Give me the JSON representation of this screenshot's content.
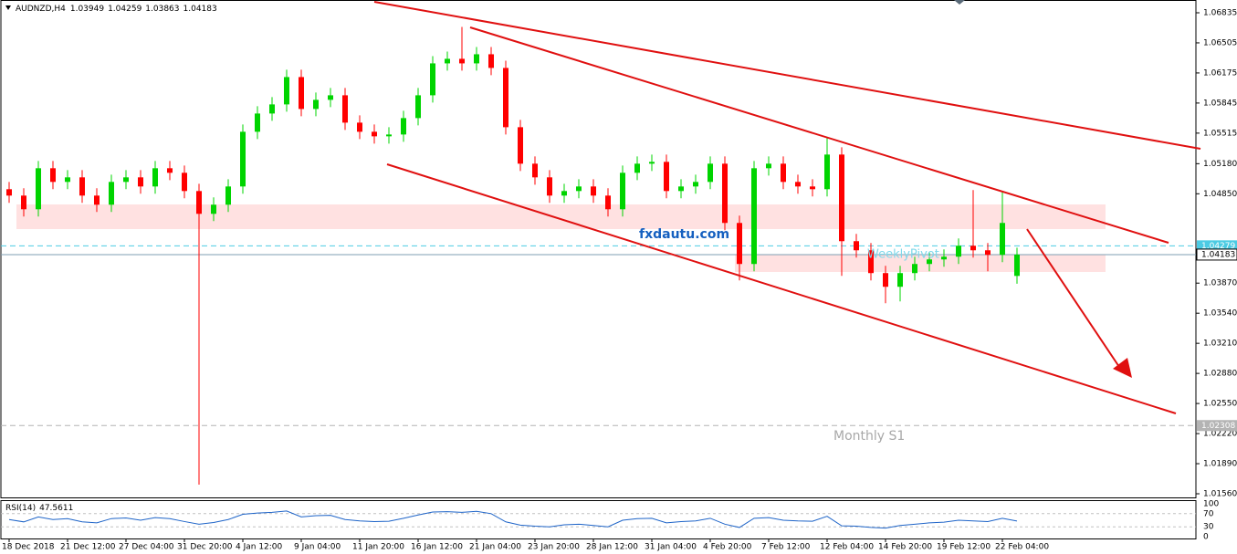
{
  "chart_data": {
    "type": "candlestick",
    "symbol": "AUDNZD,H4",
    "categories": [
      "18 Dec 2018",
      null,
      null,
      null,
      "21 Dec 12:00",
      null,
      null,
      null,
      "27 Dec 04:00",
      null,
      null,
      null,
      "31 Dec 20:00",
      null,
      null,
      null,
      "4 Jan 12:00",
      null,
      null,
      null,
      "9 Jan 04:00",
      null,
      null,
      null,
      "11 Jan 20:00",
      null,
      null,
      null,
      "16 Jan 12:00",
      null,
      null,
      null,
      "21 Jan 04:00",
      null,
      null,
      null,
      "23 Jan 20:00",
      null,
      null,
      null,
      "28 Jan 12:00",
      null,
      null,
      null,
      "31 Jan 04:00",
      null,
      null,
      null,
      "4 Feb 20:00",
      null,
      null,
      null,
      "7 Feb 12:00",
      null,
      null,
      null,
      "12 Feb 04:00",
      null,
      null,
      null,
      "14 Feb 20:00",
      null,
      null,
      null,
      "19 Feb 12:00",
      null,
      null,
      null,
      "22 Feb 04:00",
      null
    ],
    "open": [
      1.049,
      1.0483,
      1.0468,
      1.0513,
      1.0498,
      1.0503,
      1.0483,
      1.0473,
      1.0498,
      1.0503,
      1.0493,
      1.0513,
      1.0508,
      1.0488,
      1.0463,
      1.0473,
      1.0493,
      1.0553,
      1.0573,
      1.0583,
      1.0613,
      1.0578,
      1.0588,
      1.0593,
      1.0563,
      1.0553,
      1.0548,
      1.055,
      1.0568,
      1.0593,
      1.0628,
      1.0633,
      1.0628,
      1.0638,
      1.0623,
      1.0558,
      1.0518,
      1.0503,
      1.0483,
      1.0488,
      1.0493,
      1.0483,
      1.0468,
      1.0508,
      1.0518,
      1.052,
      1.0488,
      1.0493,
      1.0498,
      1.0518,
      1.0453,
      1.0408,
      1.0513,
      1.0518,
      1.0498,
      1.0493,
      1.049,
      1.0528,
      1.0433,
      1.0423,
      1.0398,
      1.0383,
      1.0398,
      1.0408,
      1.0413,
      1.0416,
      1.0428,
      1.0423,
      1.0418,
      1.03949
    ],
    "high": [
      1.0498,
      1.0491,
      1.0521,
      1.0521,
      1.0511,
      1.0511,
      1.0491,
      1.0506,
      1.0511,
      1.0511,
      1.0521,
      1.0521,
      1.0516,
      1.0496,
      1.0481,
      1.0501,
      1.0561,
      1.0581,
      1.0591,
      1.0621,
      1.0621,
      1.0596,
      1.0601,
      1.0601,
      1.0571,
      1.0561,
      1.0558,
      1.0576,
      1.0601,
      1.0636,
      1.0641,
      1.0668,
      1.0646,
      1.0646,
      1.0631,
      1.0566,
      1.0526,
      1.0511,
      1.0496,
      1.0501,
      1.0501,
      1.0491,
      1.0516,
      1.0526,
      1.0528,
      1.0528,
      1.0501,
      1.0506,
      1.0526,
      1.0526,
      1.0461,
      1.0521,
      1.0526,
      1.0526,
      1.0506,
      1.0501,
      1.0546,
      1.0536,
      1.0441,
      1.0431,
      1.0406,
      1.0406,
      1.0416,
      1.0421,
      1.0424,
      1.0436,
      1.0489,
      1.0431,
      1.0488,
      1.04259
    ],
    "low": [
      1.0475,
      1.046,
      1.046,
      1.049,
      1.049,
      1.0475,
      1.0465,
      1.0465,
      1.049,
      1.0485,
      1.0485,
      1.05,
      1.048,
      1.0166,
      1.0455,
      1.0465,
      1.0485,
      1.0545,
      1.0565,
      1.0575,
      1.057,
      1.057,
      1.058,
      1.0555,
      1.0545,
      1.054,
      1.054,
      1.0542,
      1.056,
      1.0585,
      1.062,
      1.062,
      1.062,
      1.0615,
      1.055,
      1.051,
      1.0495,
      1.0475,
      1.0475,
      1.048,
      1.0475,
      1.046,
      1.046,
      1.05,
      1.051,
      1.048,
      1.048,
      1.0485,
      1.049,
      1.0445,
      1.039,
      1.04,
      1.0505,
      1.049,
      1.0485,
      1.0482,
      1.0482,
      1.0395,
      1.0415,
      1.039,
      1.0365,
      1.0367,
      1.039,
      1.04,
      1.0405,
      1.0408,
      1.0415,
      1.04,
      1.041,
      1.03863
    ],
    "close": [
      1.0483,
      1.0468,
      1.0513,
      1.0498,
      1.0503,
      1.0483,
      1.0473,
      1.0498,
      1.0503,
      1.0493,
      1.0513,
      1.0508,
      1.0488,
      1.0463,
      1.0473,
      1.0493,
      1.0553,
      1.0573,
      1.0583,
      1.0613,
      1.0578,
      1.0588,
      1.0593,
      1.0563,
      1.0553,
      1.0548,
      1.055,
      1.0568,
      1.0593,
      1.0628,
      1.0633,
      1.0628,
      1.0638,
      1.0623,
      1.0558,
      1.0518,
      1.0503,
      1.0483,
      1.0488,
      1.0493,
      1.0483,
      1.0468,
      1.0508,
      1.0518,
      1.052,
      1.0488,
      1.0493,
      1.0498,
      1.0518,
      1.0453,
      1.0408,
      1.0513,
      1.0518,
      1.0498,
      1.0493,
      1.049,
      1.0528,
      1.0433,
      1.0423,
      1.0398,
      1.0383,
      1.0398,
      1.0408,
      1.0413,
      1.0416,
      1.0428,
      1.0423,
      1.0418,
      1.0453,
      1.04183
    ],
    "up_color": "#00d400",
    "down_color": "#ff0000",
    "ylim": [
      1.0152,
      1.06975
    ],
    "yticks": [
      1.06835,
      1.06505,
      1.06175,
      1.05845,
      1.05515,
      {
        "value": 1.0518,
        "label": "1.05180"
      },
      {
        "value": 1.0485,
        "label": "1.04850"
      },
      {
        "value": 1.0387,
        "label": "1.03870"
      },
      {
        "value": 1.0354,
        "label": "1.03540"
      },
      {
        "value": 1.0321,
        "label": "1.03210"
      },
      {
        "value": 1.0288,
        "label": "1.02880"
      },
      {
        "value": 1.0255,
        "label": "1.02550"
      },
      {
        "value": 1.0222,
        "label": "1.02220"
      },
      {
        "value": 1.0189,
        "label": "1.01890"
      },
      {
        "value": 1.0156,
        "label": "1.01560"
      }
    ],
    "levels": [
      {
        "value": 1.04279,
        "color": "#4ccbe3",
        "style": "dashed"
      },
      {
        "value": 1.04183,
        "color": "#7f9fb3",
        "style": "solid"
      },
      {
        "value": 1.02308,
        "color": "#b4b4b4",
        "style": "dashed"
      }
    ],
    "annotations": {
      "watermark": "fxdautu.com",
      "weekly": "WeeklyPivot",
      "monthly": "Monthly S1"
    },
    "rsi": {
      "title": "RSI(14)",
      "color": "#1e64c8",
      "ylim": [
        0,
        100
      ],
      "yticks": [
        100,
        70,
        30,
        0
      ],
      "values": [
        52,
        45,
        60,
        52,
        55,
        45,
        42,
        55,
        57,
        50,
        58,
        55,
        46,
        38,
        43,
        52,
        68,
        72,
        74,
        78,
        60,
        64,
        65,
        52,
        48,
        46,
        47,
        56,
        66,
        75,
        76,
        74,
        77,
        70,
        45,
        35,
        32,
        30,
        36,
        38,
        34,
        30,
        50,
        55,
        56,
        42,
        46,
        48,
        56,
        38,
        28,
        56,
        58,
        50,
        48,
        47,
        62,
        33,
        32,
        28,
        26,
        34,
        38,
        42,
        44,
        50,
        48,
        46,
        56,
        47.5611
      ]
    }
  }
}
